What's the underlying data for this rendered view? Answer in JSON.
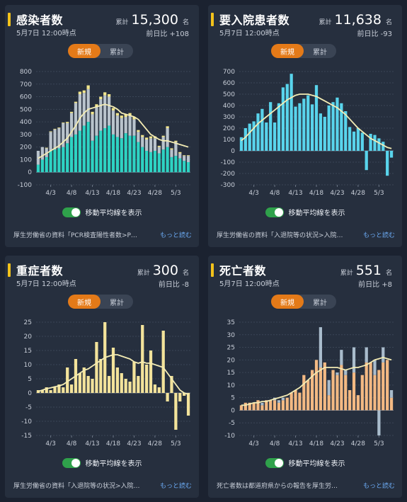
{
  "cards": [
    {
      "title": "感染者数",
      "date": "5月7日 12:00時点",
      "total_label": "累計",
      "total": "15,300",
      "unit": "名",
      "diff": "前日比 +108",
      "tabs": [
        "新規",
        "累計"
      ],
      "toggle_label": "移動平均線を表示",
      "source": "厚生労働省の資料「PCR検査陽性者数>P…",
      "more": "もっと読む"
    },
    {
      "title": "要入院患者数",
      "date": "5月7日 12:00時点",
      "total_label": "累計",
      "total": "11,638",
      "unit": "名",
      "diff": "前日比 -93",
      "tabs": [
        "新規",
        "累計"
      ],
      "toggle_label": "移動平均線を表示",
      "source": "厚生労働省の資料「入退院等の状況>入院…",
      "more": "もっと読む"
    },
    {
      "title": "重症者数",
      "date": "5月7日 12:00時点",
      "total_label": "累計",
      "total": "300",
      "unit": "名",
      "diff": "前日比 -8",
      "tabs": [
        "新規",
        "累計"
      ],
      "toggle_label": "移動平均線を表示",
      "source": "厚生労働省の資料「入退院等の状況>入院…",
      "more": "もっと読む"
    },
    {
      "title": "死亡者数",
      "date": "5月7日 12:00時点",
      "total_label": "累計",
      "total": "551",
      "unit": "名",
      "diff": "前日比 +8",
      "tabs": [
        "新規",
        "累計"
      ],
      "toggle_label": "移動平均線を表示",
      "source": "死亡者数は都道府県からの報告を厚生労…",
      "more": "もっと読む"
    }
  ],
  "colors": {
    "accent": "#e47a18",
    "title_marker": "#f2c21b",
    "toggle_on": "#2fa14b",
    "link": "#6aa8f0",
    "moving_average": "#f4ecb4",
    "infected_bar_a": "#2ed3c3",
    "infected_bar_b": "#b9c3cc",
    "infected_bar_c": "#f1e58d",
    "hospitalized_bar": "#59d4ec",
    "severe_bar": "#f3e39b",
    "death_bar_a": "#f3b983",
    "death_bar_b": "#a9bccc"
  },
  "chart_data": [
    {
      "type": "bar",
      "stacked": true,
      "x": [
        "3/31",
        "4/1",
        "4/2",
        "4/3",
        "4/4",
        "4/5",
        "4/6",
        "4/7",
        "4/8",
        "4/9",
        "4/10",
        "4/11",
        "4/12",
        "4/13",
        "4/14",
        "4/15",
        "4/16",
        "4/17",
        "4/18",
        "4/19",
        "4/20",
        "4/21",
        "4/22",
        "4/23",
        "4/24",
        "4/25",
        "4/26",
        "4/27",
        "4/28",
        "4/29",
        "4/30",
        "5/1",
        "5/2",
        "5/3",
        "5/4",
        "5/5",
        "5/6"
      ],
      "x_tick_labels": [
        "4/3",
        "4/8",
        "4/13",
        "4/18",
        "4/23",
        "4/28",
        "5/3"
      ],
      "ylim": [
        -100,
        800
      ],
      "y_ticks": [
        -100,
        0,
        100,
        200,
        300,
        400,
        500,
        600,
        700,
        800
      ],
      "series": [
        {
          "values": [
            60,
            100,
            120,
            170,
            180,
            190,
            200,
            230,
            280,
            300,
            330,
            370,
            400,
            250,
            290,
            330,
            350,
            370,
            300,
            280,
            270,
            310,
            290,
            290,
            240,
            200,
            170,
            160,
            170,
            150,
            180,
            200,
            120,
            130,
            110,
            90,
            80
          ]
        },
        {
          "values": [
            110,
            100,
            70,
            150,
            160,
            160,
            190,
            160,
            190,
            250,
            290,
            260,
            260,
            210,
            230,
            250,
            260,
            230,
            190,
            170,
            160,
            130,
            160,
            130,
            80,
            80,
            90,
            110,
            100,
            50,
            100,
            150,
            60,
            110,
            40,
            40,
            50
          ]
        },
        {
          "values": [
            0,
            0,
            5,
            5,
            5,
            5,
            5,
            10,
            10,
            10,
            20,
            20,
            30,
            20,
            20,
            20,
            25,
            20,
            20,
            20,
            20,
            20,
            20,
            20,
            15,
            15,
            15,
            15,
            15,
            10,
            10,
            15,
            10,
            10,
            10,
            5,
            5
          ]
        }
      ],
      "moving_average": [
        110,
        130,
        150,
        170,
        190,
        210,
        240,
        270,
        320,
        370,
        430,
        470,
        500,
        510,
        520,
        530,
        540,
        530,
        520,
        500,
        470,
        460,
        450,
        440,
        420,
        380,
        340,
        300,
        280,
        260,
        250,
        250,
        240,
        230,
        220,
        210,
        200
      ]
    },
    {
      "type": "bar",
      "x": [
        "3/31",
        "4/1",
        "4/2",
        "4/3",
        "4/4",
        "4/5",
        "4/6",
        "4/7",
        "4/8",
        "4/9",
        "4/10",
        "4/11",
        "4/12",
        "4/13",
        "4/14",
        "4/15",
        "4/16",
        "4/17",
        "4/18",
        "4/19",
        "4/20",
        "4/21",
        "4/22",
        "4/23",
        "4/24",
        "4/25",
        "4/26",
        "4/27",
        "4/28",
        "4/29",
        "4/30",
        "5/1",
        "5/2",
        "5/3",
        "5/4",
        "5/5",
        "5/6"
      ],
      "x_tick_labels": [
        "4/3",
        "4/8",
        "4/13",
        "4/18",
        "4/23",
        "4/28",
        "5/3"
      ],
      "ylim": [
        -300,
        700
      ],
      "y_ticks": [
        -300,
        -200,
        -100,
        0,
        100,
        200,
        300,
        400,
        500,
        600,
        700
      ],
      "values": [
        120,
        200,
        240,
        260,
        330,
        370,
        250,
        430,
        250,
        420,
        560,
        590,
        680,
        390,
        420,
        460,
        490,
        410,
        580,
        330,
        300,
        400,
        430,
        470,
        420,
        350,
        210,
        170,
        200,
        160,
        -170,
        150,
        140,
        110,
        80,
        -220,
        -60
      ],
      "moving_average": [
        90,
        120,
        160,
        200,
        240,
        270,
        300,
        330,
        360,
        390,
        420,
        450,
        470,
        490,
        500,
        500,
        500,
        490,
        480,
        460,
        440,
        420,
        400,
        380,
        350,
        320,
        280,
        240,
        200,
        170,
        140,
        110,
        90,
        70,
        50,
        30,
        20
      ]
    },
    {
      "type": "bar",
      "x": [
        "3/31",
        "4/1",
        "4/2",
        "4/3",
        "4/4",
        "4/5",
        "4/6",
        "4/7",
        "4/8",
        "4/9",
        "4/10",
        "4/11",
        "4/12",
        "4/13",
        "4/14",
        "4/15",
        "4/16",
        "4/17",
        "4/18",
        "4/19",
        "4/20",
        "4/21",
        "4/22",
        "4/23",
        "4/24",
        "4/25",
        "4/26",
        "4/27",
        "4/28",
        "4/29",
        "4/30",
        "5/1",
        "5/2",
        "5/3",
        "5/4",
        "5/5",
        "5/6"
      ],
      "x_tick_labels": [
        "4/3",
        "4/8",
        "4/13",
        "4/18",
        "4/23",
        "4/28",
        "5/3"
      ],
      "ylim": [
        -15,
        25
      ],
      "y_ticks": [
        -15,
        -10,
        -5,
        0,
        5,
        10,
        15,
        20,
        25
      ],
      "values": [
        1,
        1,
        2,
        1,
        2,
        3,
        2,
        9,
        3,
        12,
        7,
        9,
        6,
        5,
        18,
        12,
        25,
        6,
        16,
        9,
        7,
        5,
        4,
        11,
        6,
        24,
        10,
        15,
        3,
        2,
        22,
        -3,
        6,
        -13,
        -3,
        -1,
        -8
      ],
      "moving_average": [
        0.5,
        1,
        1.5,
        1.8,
        2.2,
        2.5,
        3,
        4,
        5,
        6,
        7,
        8,
        8.5,
        9.5,
        10.5,
        11.5,
        12.5,
        13,
        13.5,
        13.5,
        13,
        12.5,
        12,
        11,
        10.5,
        11,
        10.5,
        10.5,
        10,
        9.5,
        9,
        7,
        5,
        3,
        1,
        0,
        -0.5
      ]
    },
    {
      "type": "bar",
      "stacked": true,
      "x": [
        "3/31",
        "4/1",
        "4/2",
        "4/3",
        "4/4",
        "4/5",
        "4/6",
        "4/7",
        "4/8",
        "4/9",
        "4/10",
        "4/11",
        "4/12",
        "4/13",
        "4/14",
        "4/15",
        "4/16",
        "4/17",
        "4/18",
        "4/19",
        "4/20",
        "4/21",
        "4/22",
        "4/23",
        "4/24",
        "4/25",
        "4/26",
        "4/27",
        "4/28",
        "4/29",
        "4/30",
        "5/1",
        "5/2",
        "5/3",
        "5/4",
        "5/5",
        "5/6"
      ],
      "x_tick_labels": [
        "4/3",
        "4/8",
        "4/13",
        "4/18",
        "4/23",
        "4/28",
        "5/3"
      ],
      "ylim": [
        -10,
        35
      ],
      "y_ticks": [
        -10,
        -5,
        0,
        5,
        10,
        15,
        20,
        25,
        30,
        35
      ],
      "series": [
        {
          "values": [
            2,
            3,
            3,
            3,
            4,
            2,
            4,
            4,
            4,
            3,
            4,
            5,
            7,
            8,
            7,
            14,
            12,
            16,
            20,
            17,
            19,
            6,
            16,
            14,
            18,
            14,
            8,
            15,
            6,
            14,
            19,
            19,
            14,
            16,
            19,
            20,
            5
          ]
        },
        {
          "values": [
            0,
            0,
            0,
            0,
            0,
            1,
            0,
            0,
            1,
            1,
            1,
            0,
            0,
            0,
            0,
            0,
            0,
            0,
            0,
            16,
            0,
            6,
            0,
            1,
            6,
            2,
            0,
            10,
            0,
            0,
            6,
            0,
            6,
            -10,
            6,
            0,
            3
          ]
        }
      ],
      "moving_average": [
        2,
        2,
        2.5,
        3,
        3,
        3.5,
        3.5,
        4,
        4.5,
        5,
        5.5,
        6,
        7,
        8,
        9,
        10.5,
        12,
        13.5,
        15,
        16,
        17,
        17,
        17,
        17,
        16.5,
        16,
        16.5,
        17,
        17,
        17.5,
        18,
        19,
        20,
        20.5,
        21,
        20.5,
        20
      ]
    }
  ]
}
